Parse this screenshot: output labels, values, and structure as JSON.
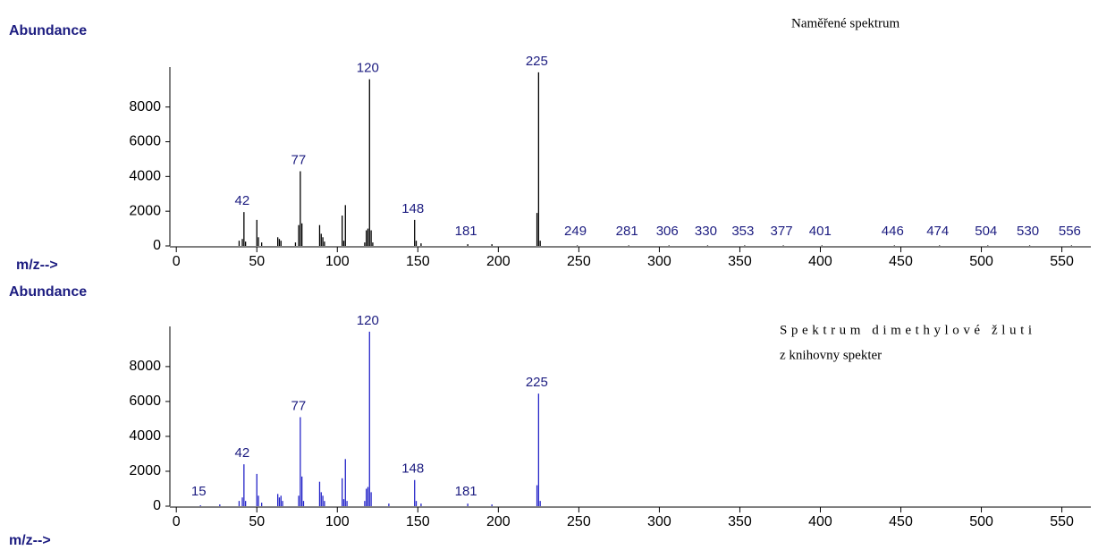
{
  "chart_data": [
    {
      "type": "bar",
      "y_label": "Abundance",
      "x_label": "m/z-->",
      "annotation": [
        "Naměřené spektrum"
      ],
      "color": "#000000",
      "label_color": "#1c1c80",
      "x": [
        39,
        41,
        42,
        43,
        50,
        51,
        53,
        63,
        64,
        65,
        74,
        76,
        77,
        78,
        89,
        90,
        91,
        92,
        103,
        104,
        105,
        117,
        118,
        119,
        120,
        121,
        122,
        148,
        149,
        152,
        181,
        196,
        224,
        225,
        226,
        249,
        281,
        306,
        330,
        353,
        377,
        401,
        446,
        474,
        504,
        530,
        556
      ],
      "values": [
        300,
        400,
        1950,
        250,
        1500,
        500,
        200,
        500,
        400,
        300,
        200,
        1200,
        4300,
        1300,
        1200,
        700,
        500,
        250,
        1750,
        300,
        2350,
        200,
        900,
        1000,
        9600,
        900,
        200,
        1500,
        300,
        150,
        100,
        100,
        1900,
        10000,
        300,
        30,
        30,
        30,
        30,
        30,
        30,
        30,
        30,
        30,
        30,
        30,
        30
      ],
      "peak_labels": [
        42,
        77,
        120,
        148,
        181,
        225,
        249,
        281,
        306,
        330,
        353,
        377,
        401,
        446,
        474,
        504,
        530,
        556
      ],
      "xlim": [
        -4,
        568
      ],
      "ylim": [
        0,
        10300
      ],
      "xticks": [
        0,
        50,
        100,
        150,
        200,
        250,
        300,
        350,
        400,
        450,
        500,
        550
      ],
      "yticks": [
        0,
        2000,
        4000,
        6000,
        8000
      ]
    },
    {
      "type": "bar",
      "y_label": "Abundance",
      "x_label": "m/z-->",
      "annotation": [
        "Spektrum dimethylové žluti",
        "z knihovny spekter"
      ],
      "color": "#2424c8",
      "label_color": "#1c1c80",
      "x": [
        15,
        27,
        39,
        41,
        42,
        43,
        50,
        51,
        53,
        63,
        64,
        65,
        66,
        76,
        77,
        78,
        79,
        89,
        90,
        91,
        92,
        103,
        104,
        105,
        106,
        117,
        118,
        119,
        120,
        121,
        132,
        148,
        149,
        152,
        181,
        196,
        224,
        225,
        226
      ],
      "values": [
        50,
        100,
        300,
        500,
        2400,
        300,
        1850,
        600,
        200,
        700,
        500,
        600,
        300,
        600,
        5100,
        1700,
        300,
        1400,
        800,
        600,
        300,
        1600,
        400,
        2700,
        300,
        300,
        1000,
        1100,
        10000,
        800,
        150,
        1500,
        300,
        150,
        150,
        100,
        1200,
        6450,
        300
      ],
      "peak_labels": [
        15,
        42,
        77,
        120,
        148,
        181,
        225
      ],
      "xlim": [
        -4,
        568
      ],
      "ylim": [
        0,
        10300
      ],
      "xticks": [
        0,
        50,
        100,
        150,
        200,
        250,
        300,
        350,
        400,
        450,
        500,
        550
      ],
      "yticks": [
        0,
        2000,
        4000,
        6000,
        8000
      ]
    }
  ]
}
